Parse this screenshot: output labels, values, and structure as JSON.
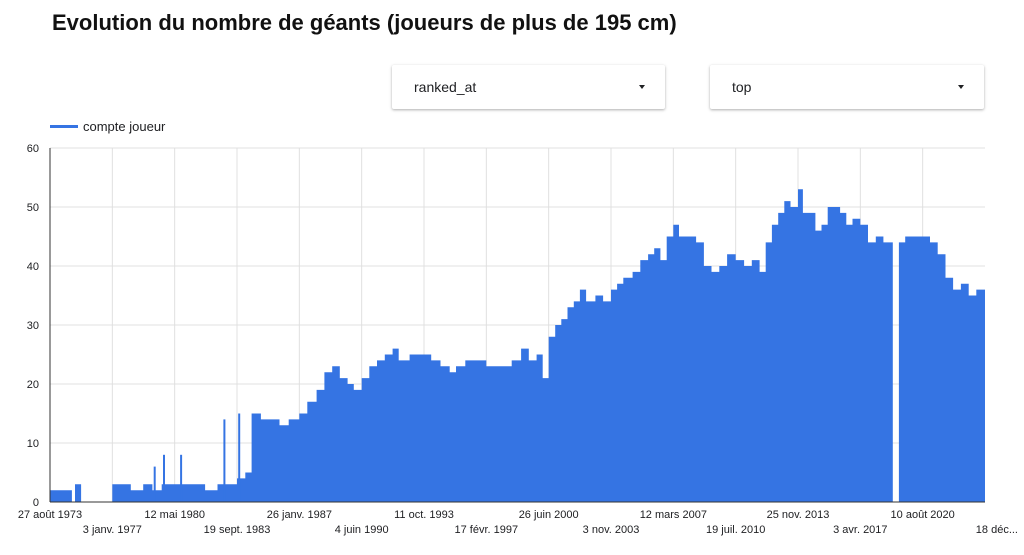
{
  "colors": {
    "series": "#3574e3",
    "grid": "#e0e0e0",
    "axis": "#333333"
  },
  "header": {
    "title": "Evolution du nombre de géants (joueurs de plus de 195 cm)"
  },
  "controls": [
    {
      "label": "ranked_at",
      "icon": "caret-down-icon"
    },
    {
      "label": "top",
      "icon": "caret-down-icon"
    }
  ],
  "chart_data": {
    "type": "area",
    "title": "Evolution du nombre de géants (joueurs de plus de 195 cm)",
    "xlabel": "",
    "ylabel": "",
    "legend": "top-left",
    "grid": true,
    "ylim": [
      0,
      60
    ],
    "yticks": [
      0,
      10,
      20,
      30,
      40,
      50,
      60
    ],
    "xlim": [
      "1973-08-27",
      "2023-12-18"
    ],
    "xticks": [
      {
        "label": "27 août 1973",
        "date": "1973-08-27",
        "row": 1
      },
      {
        "label": "3 janv. 1977",
        "date": "1977-01-03",
        "row": 2
      },
      {
        "label": "12 mai 1980",
        "date": "1980-05-12",
        "row": 1
      },
      {
        "label": "19 sept. 1983",
        "date": "1983-09-19",
        "row": 2
      },
      {
        "label": "26 janv. 1987",
        "date": "1987-01-26",
        "row": 1
      },
      {
        "label": "4 juin 1990",
        "date": "1990-06-04",
        "row": 2
      },
      {
        "label": "11 oct. 1993",
        "date": "1993-10-11",
        "row": 1
      },
      {
        "label": "17 févr. 1997",
        "date": "1997-02-17",
        "row": 2
      },
      {
        "label": "26 juin 2000",
        "date": "2000-06-26",
        "row": 1
      },
      {
        "label": "3 nov. 2003",
        "date": "2003-11-03",
        "row": 2
      },
      {
        "label": "12 mars 2007",
        "date": "2007-03-12",
        "row": 1
      },
      {
        "label": "19 juil. 2010",
        "date": "2010-07-19",
        "row": 2
      },
      {
        "label": "25 nov. 2013",
        "date": "2013-11-25",
        "row": 1
      },
      {
        "label": "3 avr. 2017",
        "date": "2017-04-03",
        "row": 2
      },
      {
        "label": "10 août 2020",
        "date": "2020-08-10",
        "row": 1
      },
      {
        "label": "18 déc...",
        "date": "2023-12-18",
        "row": 2
      }
    ],
    "series": [
      {
        "name": "compte joueur",
        "points": [
          [
            "1973-08-27",
            2
          ],
          [
            "1974-03-01",
            2
          ],
          [
            "1974-11-01",
            0
          ],
          [
            "1975-01-01",
            3
          ],
          [
            "1975-05-01",
            0
          ],
          [
            "1976-01-01",
            0
          ],
          [
            "1977-01-03",
            3
          ],
          [
            "1977-06-01",
            3
          ],
          [
            "1978-01-01",
            2
          ],
          [
            "1978-09-01",
            3
          ],
          [
            "1979-03-01",
            2
          ],
          [
            "1979-09-01",
            3
          ],
          [
            "1980-05-12",
            3
          ],
          [
            "1981-01-01",
            3
          ],
          [
            "1982-01-01",
            2
          ],
          [
            "1982-09-01",
            3
          ],
          [
            "1983-03-01",
            3
          ],
          [
            "1983-09-19",
            4
          ],
          [
            "1984-03-01",
            5
          ],
          [
            "1984-07-01",
            15
          ],
          [
            "1985-01-01",
            14
          ],
          [
            "1985-07-01",
            14
          ],
          [
            "1986-01-01",
            13
          ],
          [
            "1986-07-01",
            14
          ],
          [
            "1987-01-26",
            15
          ],
          [
            "1987-07-01",
            17
          ],
          [
            "1988-01-01",
            19
          ],
          [
            "1988-06-01",
            22
          ],
          [
            "1988-11-01",
            23
          ],
          [
            "1989-04-01",
            21
          ],
          [
            "1989-09-01",
            20
          ],
          [
            "1990-01-01",
            19
          ],
          [
            "1990-06-04",
            21
          ],
          [
            "1990-11-01",
            23
          ],
          [
            "1991-04-01",
            24
          ],
          [
            "1991-09-01",
            25
          ],
          [
            "1992-02-01",
            26
          ],
          [
            "1992-06-01",
            24
          ],
          [
            "1993-01-01",
            25
          ],
          [
            "1993-10-11",
            25
          ],
          [
            "1994-03-01",
            24
          ],
          [
            "1994-09-01",
            23
          ],
          [
            "1995-03-01",
            22
          ],
          [
            "1995-07-01",
            23
          ],
          [
            "1996-01-01",
            24
          ],
          [
            "1996-07-01",
            24
          ],
          [
            "1997-02-17",
            23
          ],
          [
            "1997-09-01",
            23
          ],
          [
            "1998-03-01",
            23
          ],
          [
            "1998-07-01",
            24
          ],
          [
            "1999-01-01",
            26
          ],
          [
            "1999-06-01",
            24
          ],
          [
            "1999-11-01",
            25
          ],
          [
            "2000-03-01",
            21
          ],
          [
            "2000-06-26",
            28
          ],
          [
            "2000-11-01",
            30
          ],
          [
            "2001-03-01",
            31
          ],
          [
            "2001-07-01",
            33
          ],
          [
            "2001-11-01",
            34
          ],
          [
            "2002-03-01",
            36
          ],
          [
            "2002-07-01",
            34
          ],
          [
            "2003-01-01",
            35
          ],
          [
            "2003-06-01",
            34
          ],
          [
            "2003-11-03",
            36
          ],
          [
            "2004-03-01",
            37
          ],
          [
            "2004-07-01",
            38
          ],
          [
            "2005-01-01",
            39
          ],
          [
            "2005-06-01",
            41
          ],
          [
            "2005-11-01",
            42
          ],
          [
            "2006-03-01",
            43
          ],
          [
            "2006-07-01",
            41
          ],
          [
            "2006-11-01",
            45
          ],
          [
            "2007-03-12",
            47
          ],
          [
            "2007-07-01",
            45
          ],
          [
            "2008-01-01",
            45
          ],
          [
            "2008-06-01",
            44
          ],
          [
            "2008-11-01",
            40
          ],
          [
            "2009-04-01",
            39
          ],
          [
            "2009-09-01",
            40
          ],
          [
            "2010-02-01",
            42
          ],
          [
            "2010-07-19",
            41
          ],
          [
            "2011-01-01",
            40
          ],
          [
            "2011-06-01",
            41
          ],
          [
            "2011-11-01",
            39
          ],
          [
            "2012-03-01",
            44
          ],
          [
            "2012-07-01",
            47
          ],
          [
            "2012-11-01",
            49
          ],
          [
            "2013-03-01",
            51
          ],
          [
            "2013-07-01",
            50
          ],
          [
            "2013-11-25",
            53
          ],
          [
            "2014-03-01",
            49
          ],
          [
            "2014-07-01",
            49
          ],
          [
            "2014-11-01",
            46
          ],
          [
            "2015-03-01",
            47
          ],
          [
            "2015-07-01",
            50
          ],
          [
            "2015-11-01",
            50
          ],
          [
            "2016-03-01",
            49
          ],
          [
            "2016-07-01",
            47
          ],
          [
            "2016-11-01",
            48
          ],
          [
            "2017-04-03",
            47
          ],
          [
            "2017-09-01",
            44
          ],
          [
            "2018-02-01",
            45
          ],
          [
            "2018-07-01",
            44
          ],
          [
            "2018-11-01",
            44
          ],
          [
            "2019-01-01",
            0
          ],
          [
            "2019-05-01",
            44
          ],
          [
            "2019-09-01",
            45
          ],
          [
            "2020-01-01",
            45
          ],
          [
            "2020-08-10",
            45
          ],
          [
            "2021-01-01",
            44
          ],
          [
            "2021-06-01",
            42
          ],
          [
            "2021-11-01",
            38
          ],
          [
            "2022-04-01",
            36
          ],
          [
            "2022-09-01",
            37
          ],
          [
            "2023-02-01",
            35
          ],
          [
            "2023-07-01",
            36
          ],
          [
            "2023-12-18",
            36
          ]
        ],
        "spikes": [
          [
            "1979-04-15",
            6
          ],
          [
            "1979-10-15",
            8
          ],
          [
            "1980-09-15",
            8
          ],
          [
            "1983-01-15",
            14
          ],
          [
            "1983-11-01",
            15
          ]
        ]
      }
    ]
  }
}
